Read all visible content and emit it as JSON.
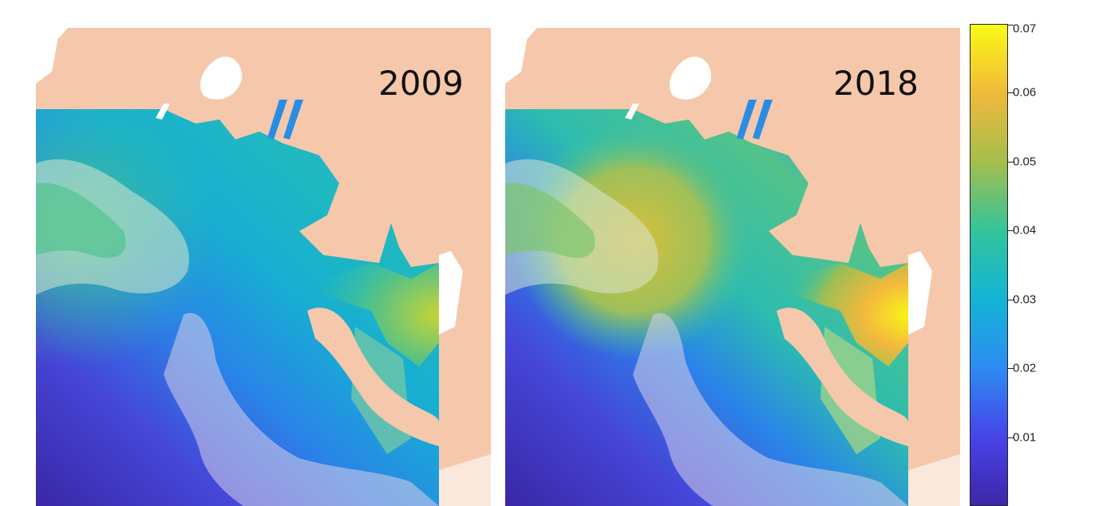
{
  "panels": [
    {
      "label": "2009",
      "hotspot_color": "#c8d435"
    },
    {
      "label": "2018",
      "hotspot_color": "#f7f21b"
    }
  ],
  "colorbar": {
    "min": 0.0,
    "max": 0.07,
    "ticks": [
      {
        "value": 0.07,
        "label": "0.07"
      },
      {
        "value": 0.06,
        "label": "0.06"
      },
      {
        "value": 0.05,
        "label": "0.05"
      },
      {
        "value": 0.04,
        "label": "0.04"
      },
      {
        "value": 0.03,
        "label": "0.03"
      },
      {
        "value": 0.02,
        "label": "0.02"
      },
      {
        "value": 0.01,
        "label": "0.01"
      }
    ],
    "colormap": "parula",
    "colors": [
      "#3e26a8",
      "#4744e9",
      "#2d8cf1",
      "#13b4d6",
      "#33c49b",
      "#a5be4c",
      "#f0b93c",
      "#f9fa14"
    ]
  },
  "land_color": "#f5c8ab"
}
